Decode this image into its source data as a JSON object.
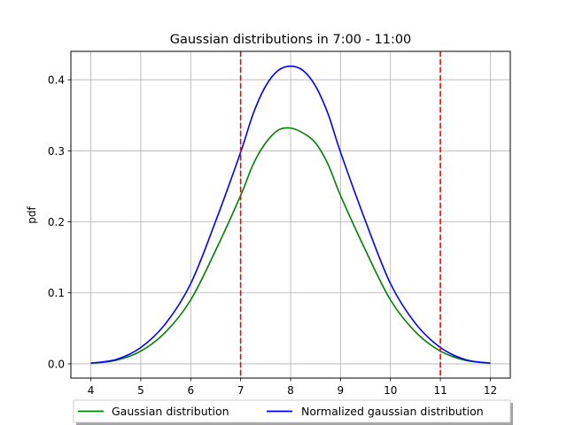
{
  "chart_data": {
    "type": "line",
    "title": "Gaussian distributions in 7:00 - 11:00",
    "xlabel": "",
    "ylabel": "pdf",
    "xlim": [
      3.6,
      12.4
    ],
    "ylim": [
      -0.02,
      0.44
    ],
    "xticks": [
      4,
      5,
      6,
      7,
      8,
      9,
      10,
      11,
      12
    ],
    "xtick_labels": [
      "4",
      "5",
      "6",
      "7",
      "8",
      "9",
      "10",
      "11",
      "12"
    ],
    "yticks": [
      0.0,
      0.1,
      0.2,
      0.3,
      0.4
    ],
    "ytick_labels": [
      "0.0",
      "0.1",
      "0.2",
      "0.3",
      "0.4"
    ],
    "grid": true,
    "legend_position": "bottom-center, outside below axes, 2 columns",
    "x": [
      4.0,
      4.5,
      5.0,
      5.5,
      6.0,
      6.5,
      7.0,
      7.25,
      7.5,
      7.75,
      8.0,
      8.25,
      8.5,
      8.75,
      9.0,
      9.5,
      10.0,
      10.5,
      11.0,
      11.5,
      12.0
    ],
    "series": [
      {
        "name": "Gaussian distribution",
        "color": "#008000",
        "values": [
          0.001,
          0.005,
          0.018,
          0.045,
          0.09,
          0.16,
          0.237,
          0.281,
          0.311,
          0.329,
          0.332,
          0.325,
          0.311,
          0.281,
          0.237,
          0.16,
          0.09,
          0.045,
          0.018,
          0.005,
          0.001
        ]
      },
      {
        "name": "Normalized gaussian distribution",
        "color": "#0000ff",
        "values": [
          0.001,
          0.006,
          0.023,
          0.057,
          0.113,
          0.201,
          0.298,
          0.352,
          0.391,
          0.413,
          0.419,
          0.413,
          0.391,
          0.352,
          0.298,
          0.201,
          0.113,
          0.057,
          0.023,
          0.006,
          0.001
        ]
      }
    ],
    "vlines": [
      {
        "x": 7,
        "color": "#ff0000",
        "style": "dashed"
      },
      {
        "x": 11,
        "color": "#ff0000",
        "style": "dashed"
      }
    ]
  }
}
